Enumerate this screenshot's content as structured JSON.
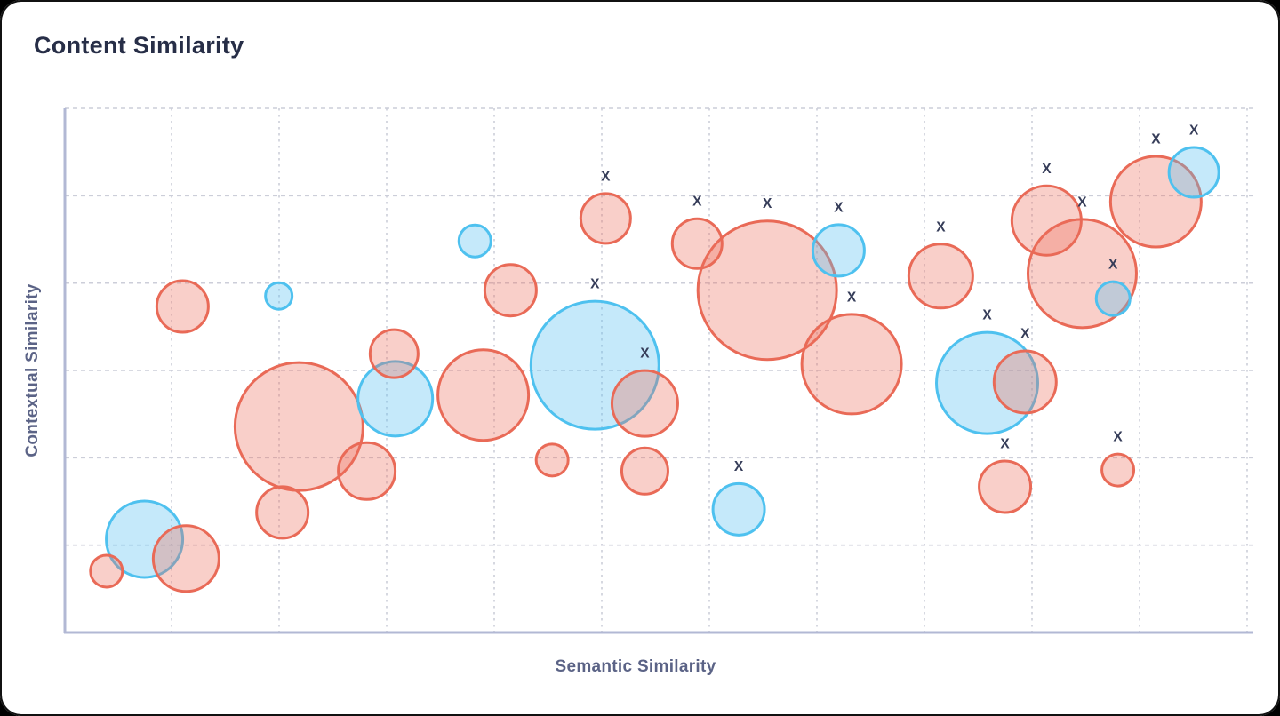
{
  "card": {
    "title": "Content Similarity"
  },
  "axes": {
    "x_label": "Semantic Similarity",
    "y_label": "Contextual Similarity"
  },
  "colors": {
    "title": "#272e47",
    "axis_label": "#5b6386",
    "axis_line": "#b2b8d4",
    "gridline": "#ccced9",
    "marker": "#363d59",
    "red_stroke": "#e96a57",
    "red_fill": "rgba(238,108,92,0.33)",
    "blue_stroke": "#4ec1ef",
    "blue_fill": "rgba(88,193,240,0.35)"
  },
  "chart_data": {
    "type": "scatter",
    "subtype": "bubble",
    "title": "Content Similarity",
    "xlabel": "Semantic Similarity",
    "ylabel": "Contextual Similarity",
    "x_range": [
      0,
      1
    ],
    "y_range": [
      0,
      1
    ],
    "grid": true,
    "legend": "none",
    "tick_labels": "none",
    "marker_annotation": "X",
    "note": "x and y are normalized 0-1 positions within the plot area (no numeric tick labels are shown in the chart); r is bubble radius in px; marked=true means an X annotation sits above the bubble",
    "series": [
      {
        "name": "red",
        "stroke": "#e96a57",
        "fill": "rgba(238,108,92,0.33)",
        "points": [
          {
            "x": 0.099,
            "y": 0.622,
            "r": 29,
            "marked": false
          },
          {
            "x": 0.277,
            "y": 0.532,
            "r": 27,
            "marked": false
          },
          {
            "x": 0.197,
            "y": 0.393,
            "r": 72,
            "marked": false
          },
          {
            "x": 0.254,
            "y": 0.308,
            "r": 32,
            "marked": false
          },
          {
            "x": 0.183,
            "y": 0.229,
            "r": 29,
            "marked": false
          },
          {
            "x": 0.102,
            "y": 0.141,
            "r": 37,
            "marked": false
          },
          {
            "x": 0.035,
            "y": 0.117,
            "r": 18,
            "marked": false
          },
          {
            "x": 0.352,
            "y": 0.453,
            "r": 51,
            "marked": false
          },
          {
            "x": 0.375,
            "y": 0.653,
            "r": 29,
            "marked": false
          },
          {
            "x": 0.455,
            "y": 0.79,
            "r": 28,
            "marked": true
          },
          {
            "x": 0.488,
            "y": 0.437,
            "r": 37,
            "marked": true
          },
          {
            "x": 0.41,
            "y": 0.329,
            "r": 18,
            "marked": false
          },
          {
            "x": 0.488,
            "y": 0.308,
            "r": 26,
            "marked": false
          },
          {
            "x": 0.532,
            "y": 0.742,
            "r": 28,
            "marked": true
          },
          {
            "x": 0.591,
            "y": 0.653,
            "r": 78,
            "marked": true
          },
          {
            "x": 0.662,
            "y": 0.512,
            "r": 56,
            "marked": true
          },
          {
            "x": 0.737,
            "y": 0.68,
            "r": 36,
            "marked": true
          },
          {
            "x": 0.808,
            "y": 0.478,
            "r": 35,
            "marked": true
          },
          {
            "x": 0.791,
            "y": 0.278,
            "r": 29,
            "marked": true
          },
          {
            "x": 0.886,
            "y": 0.31,
            "r": 18,
            "marked": true
          },
          {
            "x": 0.826,
            "y": 0.786,
            "r": 39,
            "marked": true
          },
          {
            "x": 0.856,
            "y": 0.685,
            "r": 61,
            "marked": true
          },
          {
            "x": 0.918,
            "y": 0.822,
            "r": 51,
            "marked": true
          }
        ]
      },
      {
        "name": "blue",
        "stroke": "#4ec1ef",
        "fill": "rgba(88,193,240,0.35)",
        "points": [
          {
            "x": 0.18,
            "y": 0.642,
            "r": 15,
            "marked": false
          },
          {
            "x": 0.345,
            "y": 0.747,
            "r": 18,
            "marked": false
          },
          {
            "x": 0.278,
            "y": 0.446,
            "r": 42,
            "marked": false
          },
          {
            "x": 0.067,
            "y": 0.178,
            "r": 43,
            "marked": false
          },
          {
            "x": 0.446,
            "y": 0.51,
            "r": 72,
            "marked": true
          },
          {
            "x": 0.567,
            "y": 0.235,
            "r": 29,
            "marked": true
          },
          {
            "x": 0.651,
            "y": 0.729,
            "r": 29,
            "marked": true
          },
          {
            "x": 0.776,
            "y": 0.476,
            "r": 57,
            "marked": true
          },
          {
            "x": 0.882,
            "y": 0.637,
            "r": 19,
            "marked": true
          },
          {
            "x": 0.95,
            "y": 0.878,
            "r": 28,
            "marked": true
          }
        ]
      }
    ]
  }
}
